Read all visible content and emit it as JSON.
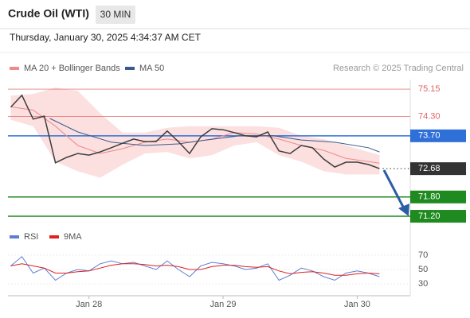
{
  "header": {
    "title": "Crude Oil (WTI)",
    "timeframe": "30 MIN",
    "datetime": "Thursday, January 30, 2025 4:34:37 AM CET"
  },
  "chart_data": [
    {
      "type": "line",
      "source": "Research © 2025 Trading Central",
      "xlim": [
        -1,
        143
      ],
      "ylim": [
        70.88,
        75.45
      ],
      "price": {
        "color": "#3d3d3d",
        "x": [
          0,
          4,
          8,
          12,
          16,
          20,
          24,
          28,
          32,
          36,
          40,
          44,
          48,
          52,
          56,
          60,
          64,
          68,
          72,
          76,
          80,
          84,
          88,
          92,
          96,
          100,
          104,
          108,
          112,
          116,
          120,
          124,
          128,
          132
        ],
        "values": [
          74.59,
          74.96,
          74.22,
          74.31,
          72.86,
          73.03,
          73.15,
          73.1,
          73.2,
          73.33,
          73.47,
          73.6,
          73.52,
          73.52,
          73.85,
          73.52,
          73.15,
          73.67,
          73.92,
          73.89,
          73.8,
          73.7,
          73.67,
          73.82,
          73.23,
          73.15,
          73.4,
          73.33,
          72.98,
          72.73,
          72.88,
          72.88,
          72.81,
          72.68
        ]
      },
      "series": [
        {
          "name": "MA 20 + Bollinger Bands",
          "color": "#ef8a8a",
          "band_color": "#fbd4d4",
          "x": [
            0,
            8,
            16,
            24,
            32,
            40,
            48,
            56,
            64,
            72,
            80,
            88,
            96,
            104,
            112,
            120,
            128,
            132
          ],
          "values": [
            74.6,
            74.5,
            74.0,
            73.4,
            73.15,
            73.3,
            73.5,
            73.6,
            73.5,
            73.6,
            73.8,
            73.75,
            73.6,
            73.4,
            73.25,
            73.0,
            72.9,
            72.85
          ],
          "upper": [
            74.95,
            75.0,
            75.2,
            75.1,
            74.4,
            73.8,
            73.8,
            73.95,
            74.0,
            74.0,
            74.0,
            74.0,
            73.95,
            73.7,
            73.6,
            73.4,
            73.2,
            73.1
          ],
          "lower": [
            74.2,
            74.0,
            72.9,
            72.6,
            72.4,
            72.8,
            73.15,
            73.2,
            73.0,
            73.1,
            73.4,
            73.5,
            73.1,
            72.9,
            72.6,
            72.5,
            72.5,
            72.5
          ]
        },
        {
          "name": "MA 50",
          "color": "#3a5a8c",
          "x": [
            14,
            24,
            36,
            48,
            60,
            70,
            82,
            94,
            104,
            116,
            128,
            132
          ],
          "values": [
            74.24,
            73.82,
            73.5,
            73.4,
            73.45,
            73.57,
            73.7,
            73.7,
            73.57,
            73.5,
            73.33,
            73.2
          ]
        }
      ],
      "levels": [
        {
          "value": 75.15,
          "color": "#e06666",
          "boxed": false
        },
        {
          "value": 74.3,
          "label": "74.30",
          "color": "#e06666",
          "boxed": false
        },
        {
          "value": 73.7,
          "label": "73.70",
          "color": "#2f6fd8",
          "boxed": true
        },
        {
          "value": 72.68,
          "color": "#333333",
          "boxed": true,
          "dotted": true
        },
        {
          "value": 71.8,
          "label": "71.80",
          "color": "#1f8a1f",
          "boxed": true
        },
        {
          "value": 71.2,
          "label": "71.20",
          "color": "#1f8a1f",
          "boxed": true
        }
      ]
    },
    {
      "type": "line",
      "xlim": [
        -1,
        143
      ],
      "ylim": [
        15,
        85
      ],
      "yticks": [
        30,
        50,
        70
      ],
      "xticks": [
        {
          "value": 28,
          "label": "Jan 28"
        },
        {
          "value": 76,
          "label": "Jan 29"
        },
        {
          "value": 124,
          "label": "Jan 30"
        }
      ],
      "series": [
        {
          "name": "RSI",
          "color": "#5b7fd6",
          "x": [
            0,
            4,
            8,
            12,
            16,
            20,
            24,
            28,
            32,
            36,
            40,
            44,
            48,
            52,
            56,
            60,
            64,
            68,
            72,
            76,
            80,
            84,
            88,
            92,
            96,
            100,
            104,
            108,
            112,
            116,
            120,
            124,
            128,
            132
          ],
          "values": [
            55,
            68,
            45,
            52,
            35,
            45,
            50,
            48,
            58,
            62,
            58,
            60,
            55,
            50,
            62,
            50,
            40,
            55,
            60,
            58,
            55,
            50,
            52,
            58,
            35,
            42,
            52,
            48,
            40,
            35,
            45,
            48,
            45,
            40
          ]
        },
        {
          "name": "9MA",
          "color": "#e02020",
          "x": [
            0,
            4,
            8,
            12,
            16,
            20,
            24,
            28,
            32,
            36,
            40,
            44,
            48,
            52,
            56,
            60,
            64,
            68,
            72,
            76,
            80,
            84,
            88,
            92,
            96,
            100,
            104,
            108,
            112,
            116,
            120,
            124,
            128,
            132
          ],
          "values": [
            55,
            58,
            55,
            52,
            45,
            45,
            47,
            48,
            52,
            56,
            58,
            58,
            57,
            55,
            56,
            54,
            50,
            50,
            54,
            56,
            56,
            54,
            53,
            54,
            48,
            44,
            46,
            47,
            45,
            42,
            42,
            44,
            45,
            44
          ]
        }
      ]
    }
  ]
}
